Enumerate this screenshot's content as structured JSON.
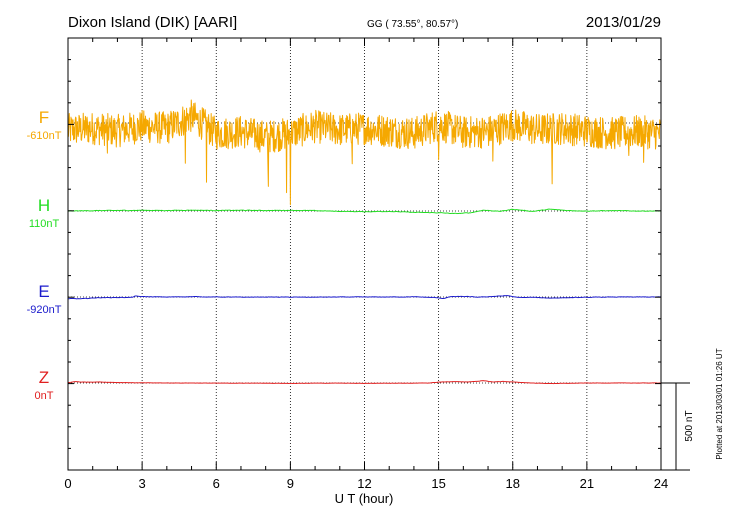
{
  "chart_data": {
    "type": "line",
    "title": "Dixon Island (DIK)  [AARI]",
    "coords": "GG ( 73.55°,  80.57°)",
    "date": "2013/01/29",
    "xlabel": "U T (hour)",
    "xlim": [
      0,
      24
    ],
    "xticks": [
      "0",
      "3",
      "6",
      "9",
      "12",
      "15",
      "18",
      "21",
      "24"
    ],
    "scale_label": "500 nT",
    "scale_nT": 500,
    "plotted_label": "Plotted at 2013/03/01 01:26 UT",
    "series": [
      {
        "name": "F",
        "base_label": "-610nT",
        "color": "#f5a800",
        "kind": "noisy",
        "points": [
          [
            0,
            -40
          ],
          [
            1,
            -30
          ],
          [
            2,
            -45
          ],
          [
            3,
            -20
          ],
          [
            4,
            -30
          ],
          [
            5,
            40
          ],
          [
            6,
            -60
          ],
          [
            7,
            -50
          ],
          [
            8,
            -80
          ],
          [
            9,
            -60
          ],
          [
            10,
            -20
          ],
          [
            11,
            -40
          ],
          [
            12,
            -30
          ],
          [
            13,
            -45
          ],
          [
            14,
            -60
          ],
          [
            15,
            -10
          ],
          [
            16,
            -55
          ],
          [
            17,
            -50
          ],
          [
            18,
            -10
          ],
          [
            19,
            -40
          ],
          [
            20,
            -30
          ],
          [
            21,
            -45
          ],
          [
            22,
            -60
          ],
          [
            23,
            -50
          ],
          [
            24,
            -60
          ]
        ],
        "noise_amp": 95,
        "spikes": [
          [
            1.6,
            190
          ],
          [
            4.75,
            280
          ],
          [
            5.6,
            250
          ],
          [
            8.1,
            210
          ],
          [
            8.85,
            300
          ],
          [
            9.0,
            320
          ],
          [
            11.5,
            130
          ],
          [
            15.0,
            140
          ],
          [
            17.2,
            190
          ],
          [
            19.6,
            320
          ],
          [
            22.7,
            170
          ],
          [
            23.3,
            150
          ]
        ]
      },
      {
        "name": "H",
        "base_label": "110nT",
        "color": "#22dd22",
        "kind": "smooth",
        "points": [
          [
            0,
            0
          ],
          [
            1,
            2
          ],
          [
            2,
            3
          ],
          [
            3,
            4
          ],
          [
            4,
            3
          ],
          [
            5,
            5
          ],
          [
            6,
            3
          ],
          [
            7,
            4
          ],
          [
            8,
            3
          ],
          [
            9,
            4
          ],
          [
            10,
            2
          ],
          [
            11,
            -2
          ],
          [
            12,
            -4
          ],
          [
            13,
            -2
          ],
          [
            14,
            -8
          ],
          [
            15,
            -10
          ],
          [
            15.7,
            -15
          ],
          [
            16.3,
            -10
          ],
          [
            16.8,
            5
          ],
          [
            17.5,
            -2
          ],
          [
            18,
            10
          ],
          [
            18.8,
            -2
          ],
          [
            19.5,
            10
          ],
          [
            20.2,
            3
          ],
          [
            21,
            0
          ],
          [
            22,
            2
          ],
          [
            23,
            0
          ],
          [
            24,
            0
          ]
        ],
        "noise_amp": 3
      },
      {
        "name": "E",
        "base_label": "-920nT",
        "color": "#1a1acc",
        "kind": "smooth",
        "points": [
          [
            0,
            -10
          ],
          [
            0.6,
            -10
          ],
          [
            1.2,
            -4
          ],
          [
            2,
            -3
          ],
          [
            2.6,
            -2
          ],
          [
            2.7,
            5
          ],
          [
            3,
            2
          ],
          [
            4,
            0
          ],
          [
            5,
            2
          ],
          [
            6,
            0
          ],
          [
            7,
            -1
          ],
          [
            8,
            0
          ],
          [
            9,
            -1
          ],
          [
            10,
            -1
          ],
          [
            11,
            0
          ],
          [
            12,
            0
          ],
          [
            13,
            0
          ],
          [
            14,
            1
          ],
          [
            14.8,
            -3
          ],
          [
            15.2,
            -8
          ],
          [
            15.5,
            2
          ],
          [
            16,
            3
          ],
          [
            16.6,
            -1
          ],
          [
            17.2,
            3
          ],
          [
            17.8,
            8
          ],
          [
            18.2,
            -3
          ],
          [
            18.8,
            -2
          ],
          [
            19.5,
            -6
          ],
          [
            20.2,
            -4
          ],
          [
            21,
            -2
          ],
          [
            22,
            0
          ],
          [
            23,
            0
          ],
          [
            24,
            0
          ]
        ],
        "noise_amp": 2.5
      },
      {
        "name": "Z",
        "base_label": "0nT",
        "color": "#e02020",
        "kind": "smooth",
        "points": [
          [
            0,
            2
          ],
          [
            0.3,
            8
          ],
          [
            0.6,
            5
          ],
          [
            1.2,
            6
          ],
          [
            2,
            3
          ],
          [
            3,
            1
          ],
          [
            4,
            0
          ],
          [
            5,
            0
          ],
          [
            6,
            -1
          ],
          [
            7,
            -1
          ],
          [
            8,
            -1
          ],
          [
            9,
            -2
          ],
          [
            10,
            -1
          ],
          [
            11,
            -1
          ],
          [
            12,
            -2
          ],
          [
            13,
            -1
          ],
          [
            14,
            -1
          ],
          [
            14.6,
            0
          ],
          [
            15,
            5
          ],
          [
            15.6,
            8
          ],
          [
            16.2,
            6
          ],
          [
            16.8,
            13
          ],
          [
            17.2,
            6
          ],
          [
            17.6,
            9
          ],
          [
            18.2,
            4
          ],
          [
            18.8,
            0
          ],
          [
            19.5,
            -3
          ],
          [
            20.2,
            -2
          ],
          [
            21,
            0
          ],
          [
            22,
            0
          ],
          [
            23,
            0
          ],
          [
            24,
            0
          ]
        ],
        "noise_amp": 1.5
      }
    ]
  }
}
